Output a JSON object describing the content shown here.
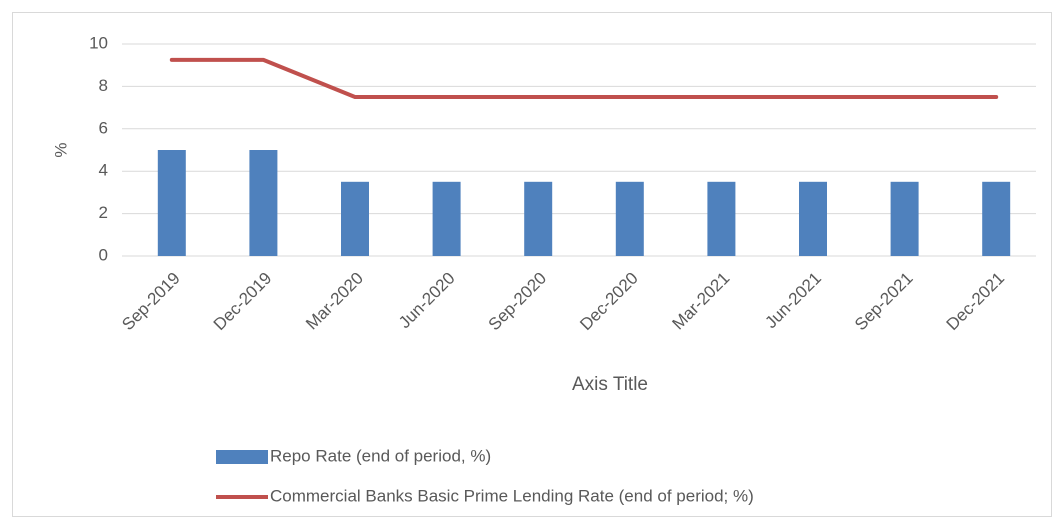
{
  "chart_data": {
    "type": "bar",
    "categories": [
      "Sep-2019",
      "Dec-2019",
      "Mar-2020",
      "Jun-2020",
      "Sep-2020",
      "Dec-2020",
      "Mar-2021",
      "Jun-2021",
      "Sep-2021",
      "Dec-2021"
    ],
    "series": [
      {
        "name": "Repo Rate (end of period, %)",
        "type": "bar",
        "color": "#4f81bd",
        "values": [
          5,
          5,
          3.5,
          3.5,
          3.5,
          3.5,
          3.5,
          3.5,
          3.5,
          3.5
        ]
      },
      {
        "name": "Commercial Banks Basic Prime Lending Rate (end of period; %)",
        "type": "line",
        "color": "#c0504d",
        "values": [
          9.25,
          9.25,
          7.5,
          7.5,
          7.5,
          7.5,
          7.5,
          7.5,
          7.5,
          7.5
        ]
      }
    ],
    "ylabel": "%",
    "xlabel": "Axis Title",
    "ylim": [
      0,
      10
    ],
    "yticks": [
      0,
      2,
      4,
      6,
      8,
      10
    ],
    "grid": true
  }
}
